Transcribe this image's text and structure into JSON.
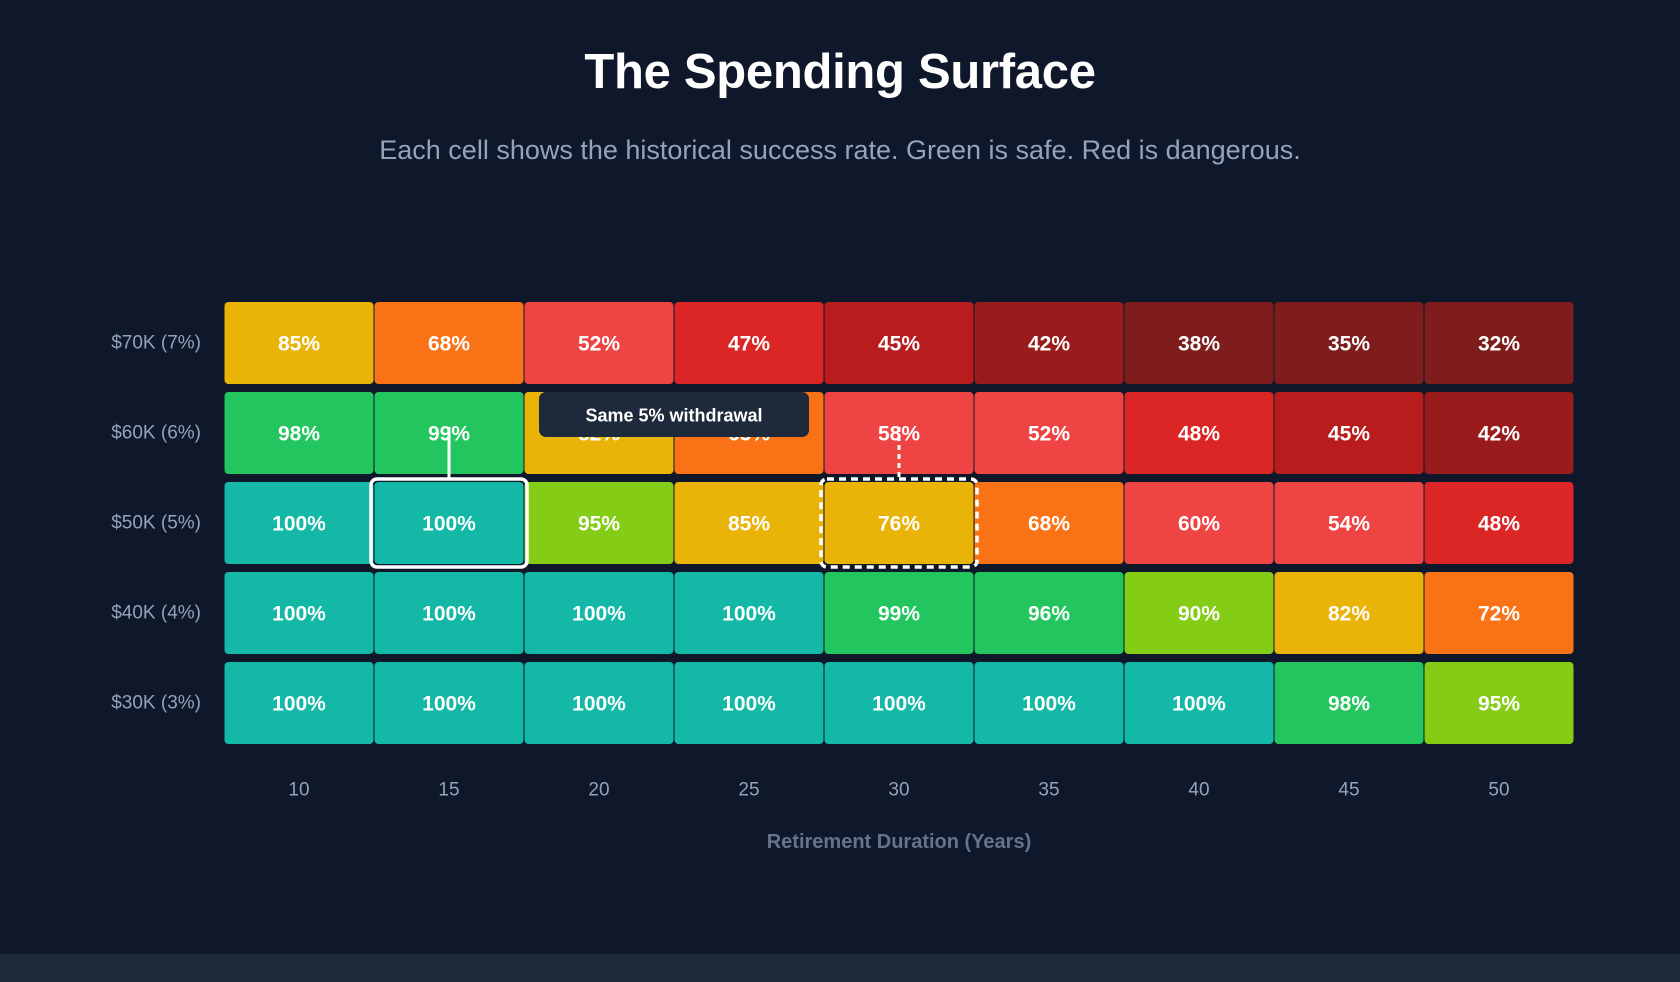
{
  "title": "The Spending Surface",
  "subtitle": "Each cell shows the historical success rate. Green is safe. Red is dangerous.",
  "chart_data": {
    "type": "heatmap",
    "xlabel": "Retirement Duration (Years)",
    "x": [
      "10",
      "15",
      "20",
      "25",
      "30",
      "35",
      "40",
      "45",
      "50"
    ],
    "rows": [
      {
        "label": "$70K (7%)",
        "values": [
          85,
          68,
          52,
          47,
          45,
          42,
          38,
          35,
          32
        ]
      },
      {
        "label": "$60K (6%)",
        "values": [
          98,
          99,
          82,
          65,
          58,
          52,
          48,
          45,
          42
        ]
      },
      {
        "label": "$50K (5%)",
        "values": [
          100,
          100,
          95,
          85,
          76,
          68,
          60,
          54,
          48
        ]
      },
      {
        "label": "$40K (4%)",
        "values": [
          100,
          100,
          100,
          100,
          99,
          96,
          90,
          82,
          72
        ]
      },
      {
        "label": "$30K (3%)",
        "values": [
          100,
          100,
          100,
          100,
          100,
          100,
          100,
          98,
          95
        ]
      }
    ],
    "value_suffix": "%",
    "highlights": [
      {
        "row": "$50K (5%)",
        "x": "15",
        "style": "solid"
      },
      {
        "row": "$50K (5%)",
        "x": "30",
        "style": "dashed"
      }
    ],
    "annotation": {
      "text": "Same 5% withdrawal"
    },
    "colors": {
      "background": "#0f172a",
      "teal": "#14b8a6",
      "green": "#22c55e",
      "lime": "#84cc16",
      "yellow": "#eab308",
      "orange": "#f97316",
      "red_light": "#ef4444",
      "red": "#dc2626",
      "red_dark": "#b91c1c",
      "red_darker": "#991b1b",
      "red_darkest": "#7f1d1d"
    }
  }
}
